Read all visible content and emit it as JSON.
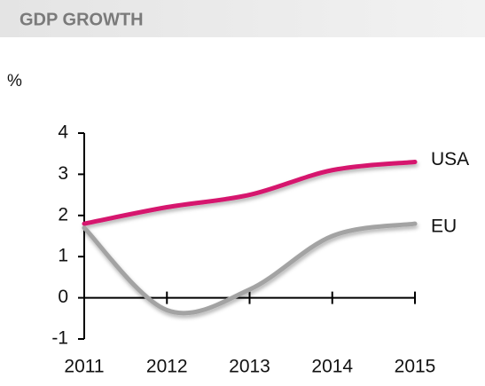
{
  "chart_data": {
    "type": "line",
    "title": "GDP GROWTH",
    "y_label": "%",
    "categories": [
      "2011",
      "2012",
      "2013",
      "2014",
      "2015"
    ],
    "series": [
      {
        "name": "USA",
        "color": "#d6146e",
        "values": [
          1.8,
          2.2,
          2.5,
          3.1,
          3.3
        ]
      },
      {
        "name": "EU",
        "color": "#a3a3a3",
        "values": [
          1.7,
          -0.3,
          0.2,
          1.5,
          1.8
        ]
      }
    ],
    "ylim": [
      -1,
      4
    ],
    "yticks": [
      -1,
      0,
      1,
      2,
      3,
      4
    ],
    "grid": false
  }
}
